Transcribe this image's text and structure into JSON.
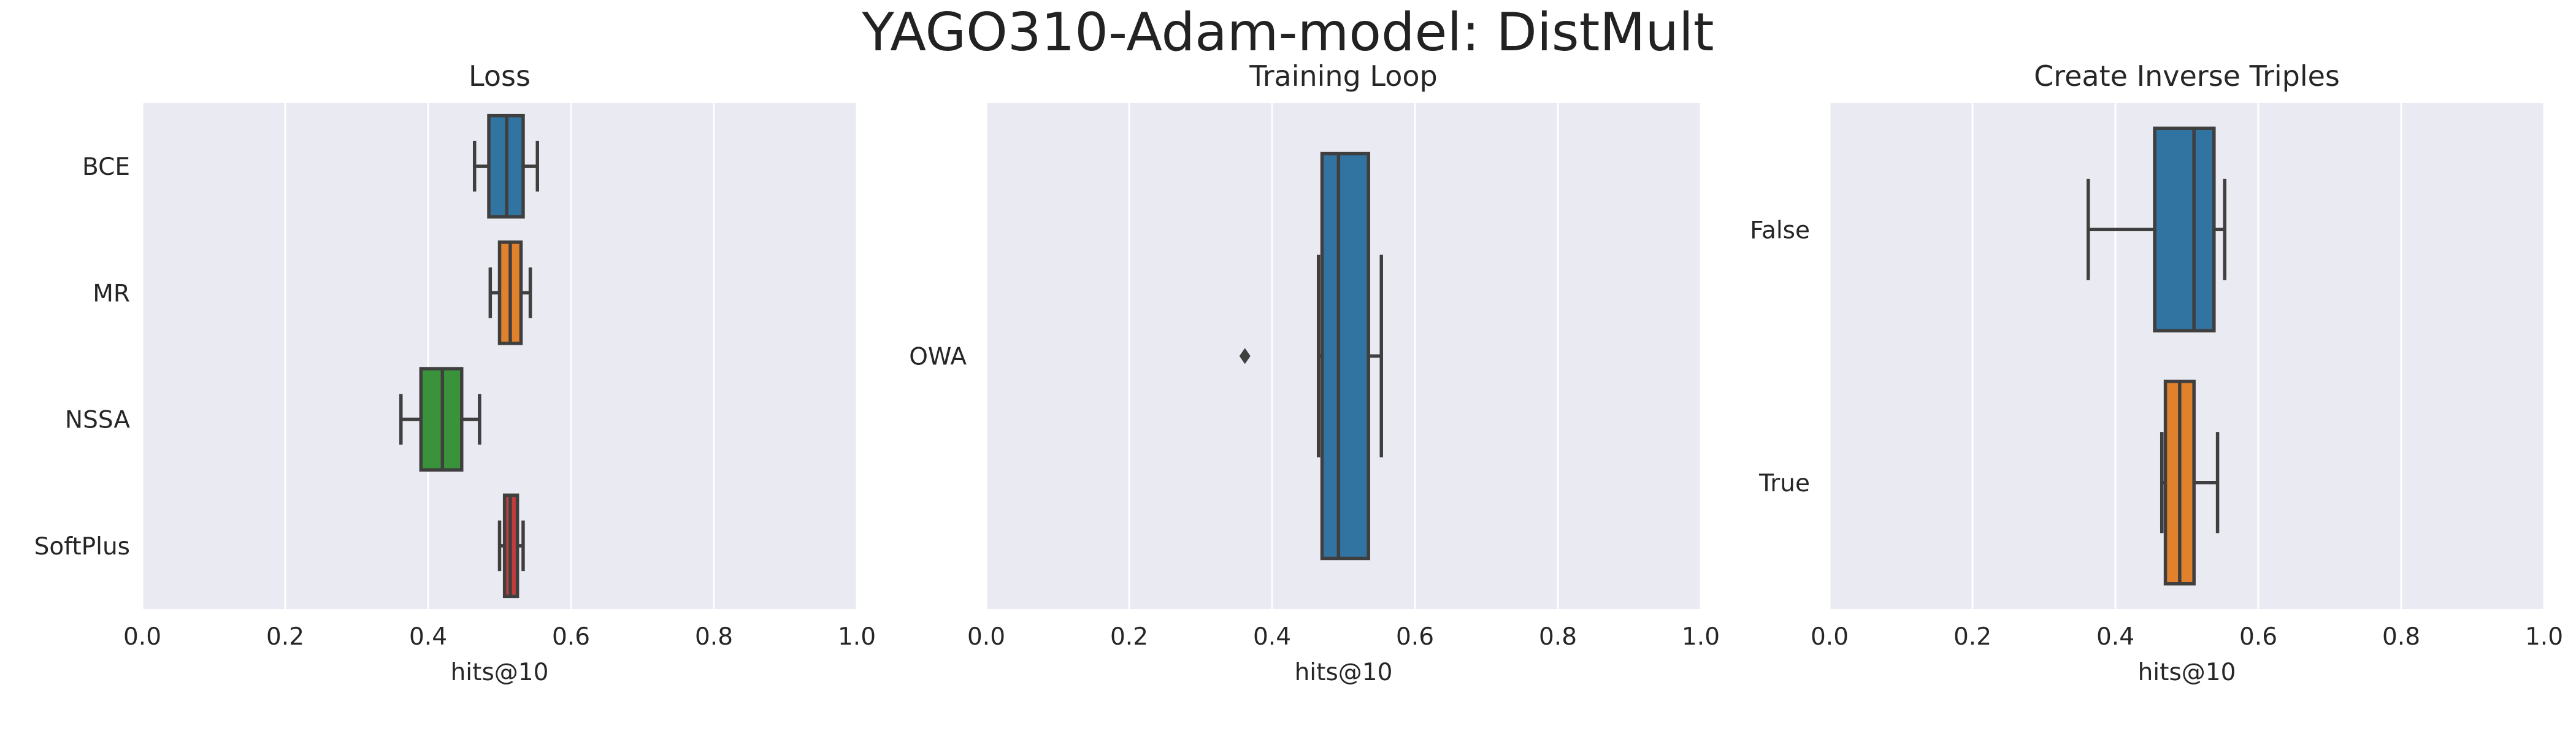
{
  "figure": {
    "title": "YAGO310-Adam-model: DistMult",
    "background": "#ffffff",
    "axes_facecolor": "#eaeaf2",
    "grid_color": "#ffffff",
    "box_edge_color": "#3f3f3f"
  },
  "chart_data": [
    {
      "type": "boxplot",
      "orientation": "horizontal",
      "title": "Loss",
      "xlabel": "hits@10",
      "ylabel": "",
      "xlim": [
        0.0,
        1.0
      ],
      "xticks": [
        0.0,
        0.2,
        0.4,
        0.6,
        0.8,
        1.0
      ],
      "xtick_labels": [
        "0.0",
        "0.2",
        "0.4",
        "0.6",
        "0.8",
        "1.0"
      ],
      "grid": "vertical",
      "categories": [
        "BCE",
        "MR",
        "NSSA",
        "SoftPlus"
      ],
      "boxes": [
        {
          "label": "BCE",
          "color": "#3274a1",
          "whisker_low": 0.465,
          "q1": 0.485,
          "median": 0.51,
          "q3": 0.533,
          "whisker_high": 0.553,
          "outliers": []
        },
        {
          "label": "MR",
          "color": "#e1812c",
          "whisker_low": 0.487,
          "q1": 0.5,
          "median": 0.515,
          "q3": 0.53,
          "whisker_high": 0.543,
          "outliers": []
        },
        {
          "label": "NSSA",
          "color": "#3a923a",
          "whisker_low": 0.362,
          "q1": 0.39,
          "median": 0.42,
          "q3": 0.447,
          "whisker_high": 0.472,
          "outliers": []
        },
        {
          "label": "SoftPlus",
          "color": "#c03d3e",
          "whisker_low": 0.5,
          "q1": 0.507,
          "median": 0.515,
          "q3": 0.525,
          "whisker_high": 0.533,
          "outliers": []
        }
      ]
    },
    {
      "type": "boxplot",
      "orientation": "horizontal",
      "title": "Training Loop",
      "xlabel": "hits@10",
      "ylabel": "",
      "xlim": [
        0.0,
        1.0
      ],
      "xticks": [
        0.0,
        0.2,
        0.4,
        0.6,
        0.8,
        1.0
      ],
      "xtick_labels": [
        "0.0",
        "0.2",
        "0.4",
        "0.6",
        "0.8",
        "1.0"
      ],
      "grid": "vertical",
      "categories": [
        "OWA"
      ],
      "boxes": [
        {
          "label": "OWA",
          "color": "#3274a1",
          "whisker_low": 0.465,
          "q1": 0.47,
          "median": 0.493,
          "q3": 0.535,
          "whisker_high": 0.553,
          "outliers": [
            0.362
          ]
        }
      ]
    },
    {
      "type": "boxplot",
      "orientation": "horizontal",
      "title": "Create Inverse Triples",
      "xlabel": "hits@10",
      "ylabel": "",
      "xlim": [
        0.0,
        1.0
      ],
      "xticks": [
        0.0,
        0.2,
        0.4,
        0.6,
        0.8,
        1.0
      ],
      "xtick_labels": [
        "0.0",
        "0.2",
        "0.4",
        "0.6",
        "0.8",
        "1.0"
      ],
      "grid": "vertical",
      "categories": [
        "False",
        "True"
      ],
      "boxes": [
        {
          "label": "False",
          "color": "#3274a1",
          "whisker_low": 0.362,
          "q1": 0.455,
          "median": 0.51,
          "q3": 0.538,
          "whisker_high": 0.553,
          "outliers": []
        },
        {
          "label": "True",
          "color": "#e1812c",
          "whisker_low": 0.465,
          "q1": 0.47,
          "median": 0.49,
          "q3": 0.51,
          "whisker_high": 0.543,
          "outliers": []
        }
      ]
    }
  ]
}
